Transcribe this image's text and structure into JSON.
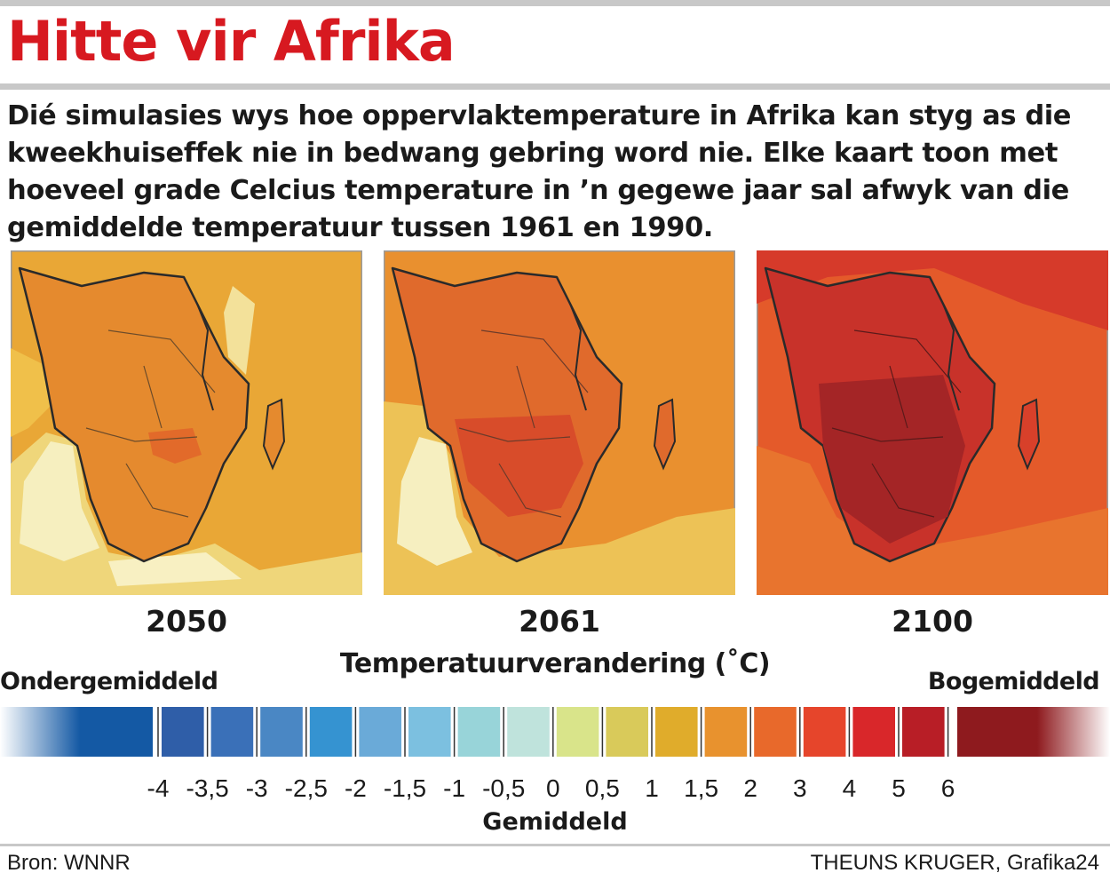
{
  "title": "Hitte vir Afrika",
  "lede": "Dié simulasies wys hoe oppervlaktemperature in Afrika kan styg as die kweekhuiseffek nie in bedwang gebring word nie. Elke kaart toon met hoeveel grade Celcius temperature in ’n gegewe jaar sal afwyk van die gemiddelde temperatuur tussen 1961 en 1990.",
  "maps": [
    {
      "year": "2050"
    },
    {
      "year": "2061"
    },
    {
      "year": "2100"
    }
  ],
  "legend": {
    "title": "Temperatuurverandering (˚C)",
    "below_label": "Ondergemiddeld",
    "above_label": "Bogemiddeld",
    "average_label": "Gemiddeld",
    "ticks": [
      "-4",
      "-3,5",
      "-3",
      "-2,5",
      "-2",
      "-1,5",
      "-1",
      "-0,5",
      "0",
      "0,5",
      "1",
      "1,5",
      "2",
      "3",
      "4",
      "5",
      "6"
    ],
    "end_colors": {
      "below": "#1459a4",
      "above": "#8e1a1e"
    },
    "bin_colors": [
      "#2f5ea8",
      "#3a70b8",
      "#4a87c4",
      "#3593d1",
      "#6aaad8",
      "#7cc0e0",
      "#98d4d9",
      "#bfe3dc",
      "#d9e48a",
      "#d9ca5a",
      "#e0ac2b",
      "#e8922e",
      "#e8692b",
      "#e6452b",
      "#d9272a",
      "#b81e26"
    ]
  },
  "footer": {
    "source": "Bron: WNNR",
    "credit": "THEUNS KRUGER, Grafika24"
  }
}
